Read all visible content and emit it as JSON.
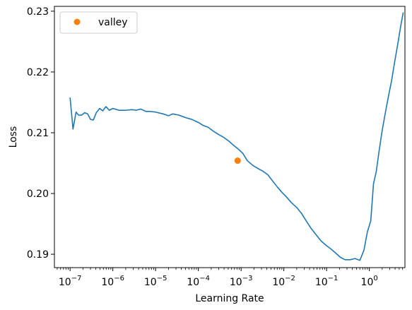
{
  "chart_data": {
    "type": "line",
    "title": "",
    "xlabel": "Learning Rate",
    "ylabel": "Loss",
    "xscale": "log",
    "xlim": [
      4.3e-08,
      6.8
    ],
    "ylim": [
      0.1878,
      0.2308
    ],
    "grid": false,
    "legend": {
      "placement": "top-left"
    },
    "x_ticks": [
      {
        "value": 1e-07,
        "base": "10",
        "exp": "−7"
      },
      {
        "value": 1e-06,
        "base": "10",
        "exp": "−6"
      },
      {
        "value": 1e-05,
        "base": "10",
        "exp": "−5"
      },
      {
        "value": 0.0001,
        "base": "10",
        "exp": "−4"
      },
      {
        "value": 0.001,
        "base": "10",
        "exp": "−3"
      },
      {
        "value": 0.01,
        "base": "10",
        "exp": "−2"
      },
      {
        "value": 0.1,
        "base": "10",
        "exp": "−1"
      },
      {
        "value": 1,
        "base": "10",
        "exp": "0"
      }
    ],
    "y_ticks": [
      {
        "value": 0.19,
        "label": "0.19"
      },
      {
        "value": 0.2,
        "label": "0.20"
      },
      {
        "value": 0.21,
        "label": "0.21"
      },
      {
        "value": 0.22,
        "label": "0.22"
      },
      {
        "value": 0.23,
        "label": "0.23"
      }
    ],
    "series": [
      {
        "color": "#1f77b4",
        "points": [
          [
            1e-07,
            0.2158
          ],
          [
            1.17e-07,
            0.2106
          ],
          [
            1.38e-07,
            0.2134
          ],
          [
            1.58e-07,
            0.2129
          ],
          [
            1.86e-07,
            0.2129
          ],
          [
            2.19e-07,
            0.2133
          ],
          [
            2.57e-07,
            0.2131
          ],
          [
            3e-07,
            0.2122
          ],
          [
            3.5e-07,
            0.2121
          ],
          [
            4.1e-07,
            0.2133
          ],
          [
            4.9e-07,
            0.214
          ],
          [
            5.8e-07,
            0.2136
          ],
          [
            6.9e-07,
            0.2143
          ],
          [
            8.3e-07,
            0.2137
          ],
          [
            1e-06,
            0.214
          ],
          [
            1.4e-06,
            0.2137
          ],
          [
            2e-06,
            0.2137
          ],
          [
            2.8e-06,
            0.2138
          ],
          [
            3.5e-06,
            0.2137
          ],
          [
            4.5e-06,
            0.2139
          ],
          [
            6e-06,
            0.2135
          ],
          [
            7.5e-06,
            0.2135
          ],
          [
            1e-05,
            0.2134
          ],
          [
            1.5e-05,
            0.2131
          ],
          [
            2e-05,
            0.2128
          ],
          [
            2.5e-05,
            0.2131
          ],
          [
            3.5e-05,
            0.2129
          ],
          [
            5e-05,
            0.2125
          ],
          [
            7e-05,
            0.2122
          ],
          [
            0.0001,
            0.2117
          ],
          [
            0.00013,
            0.2112
          ],
          [
            0.00017,
            0.2109
          ],
          [
            0.00022,
            0.2103
          ],
          [
            0.0003,
            0.2097
          ],
          [
            0.0004,
            0.2092
          ],
          [
            0.00052,
            0.2086
          ],
          [
            0.00065,
            0.208
          ],
          [
            0.00083,
            0.2074
          ],
          [
            0.0011,
            0.2066
          ],
          [
            0.0014,
            0.2054
          ],
          [
            0.0019,
            0.2046
          ],
          [
            0.0025,
            0.2041
          ],
          [
            0.0032,
            0.2037
          ],
          [
            0.0042,
            0.2031
          ],
          [
            0.0054,
            0.2021
          ],
          [
            0.007,
            0.2011
          ],
          [
            0.009,
            0.2002
          ],
          [
            0.012,
            0.1993
          ],
          [
            0.015,
            0.1985
          ],
          [
            0.02,
            0.1977
          ],
          [
            0.026,
            0.1967
          ],
          [
            0.034,
            0.1954
          ],
          [
            0.044,
            0.1942
          ],
          [
            0.057,
            0.1932
          ],
          [
            0.074,
            0.1922
          ],
          [
            0.096,
            0.1915
          ],
          [
            0.125,
            0.1909
          ],
          [
            0.163,
            0.1902
          ],
          [
            0.21,
            0.1895
          ],
          [
            0.27,
            0.1891
          ],
          [
            0.355,
            0.1891
          ],
          [
            0.46,
            0.1893
          ],
          [
            0.6,
            0.189
          ],
          [
            0.75,
            0.1907
          ],
          [
            0.9,
            0.1937
          ],
          [
            1.08,
            0.1955
          ],
          [
            1.25,
            0.2016
          ],
          [
            1.45,
            0.2036
          ],
          [
            1.7,
            0.2071
          ],
          [
            2.0,
            0.2104
          ],
          [
            2.4,
            0.2135
          ],
          [
            2.8,
            0.216
          ],
          [
            3.3,
            0.2185
          ],
          [
            3.9,
            0.2216
          ],
          [
            4.6,
            0.2245
          ],
          [
            5.4,
            0.2275
          ],
          [
            6.2,
            0.2298
          ]
        ]
      },
      {
        "name": "valley",
        "color": "#ff7f0e",
        "marker": "circle",
        "points": [
          [
            0.00083,
            0.2054
          ]
        ]
      }
    ]
  }
}
